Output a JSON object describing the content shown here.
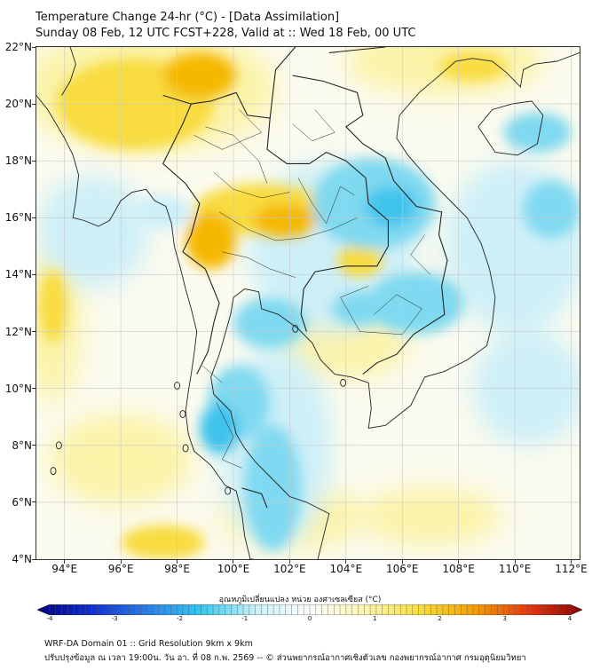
{
  "header": {
    "title": "Temperature Change 24-hr (°C) - [Data Assimilation]",
    "subtitle": "Sunday 08 Feb, 12 UTC FCST+228, Valid at :: Wed 18 Feb, 00 UTC"
  },
  "map": {
    "lat_labels": [
      "22°N",
      "20°N",
      "18°N",
      "16°N",
      "14°N",
      "12°N",
      "10°N",
      "8°N",
      "6°N",
      "4°N"
    ],
    "lon_labels": [
      "94°E",
      "96°E",
      "98°E",
      "100°E",
      "102°E",
      "104°E",
      "106°E",
      "108°E",
      "110°E",
      "112°E"
    ],
    "lat_range": [
      4,
      22
    ],
    "lon_range": [
      93,
      112.3
    ],
    "field_colors": {
      "warm_strong": "#f5b800",
      "warm": "#f8dc40",
      "warm_light": "#fbf3a8",
      "neutral": "#fbfbef",
      "cool_light": "#cdeff8",
      "cool": "#7fd9f0",
      "cool_strong": "#3fc3ec"
    },
    "border_color": "#222222",
    "grid_color": "#c8c8c8"
  },
  "colorbar": {
    "title": "อุณหภูมิเปลี่ยนแปลง หน่วย องศาเซลเซียส (°C)",
    "tick_labels": [
      "-4",
      "-3",
      "-2",
      "-1",
      "0",
      "1",
      "2",
      "3",
      "4"
    ],
    "min": -4,
    "max": 4,
    "stops": [
      "#000080",
      "#1030d0",
      "#2a7ee8",
      "#35c8f0",
      "#c8f0f8",
      "#ffffff",
      "#fbf6b0",
      "#f7e040",
      "#f5a000",
      "#e83a10",
      "#8a0000"
    ]
  },
  "footer": {
    "line1": "WRF-DA Domain 01 :: Grid Resolution 9km x 9km",
    "line2": "ปรับปรุงข้อมูล ณ เวลา 19:00น. วัน อา. ที่ 08 ก.พ. 2569 -- © ส่วนพยากรณ์อากาศเชิงตัวเลข กองพยากรณ์อากาศ กรมอุตุนิยมวิทยา"
  }
}
